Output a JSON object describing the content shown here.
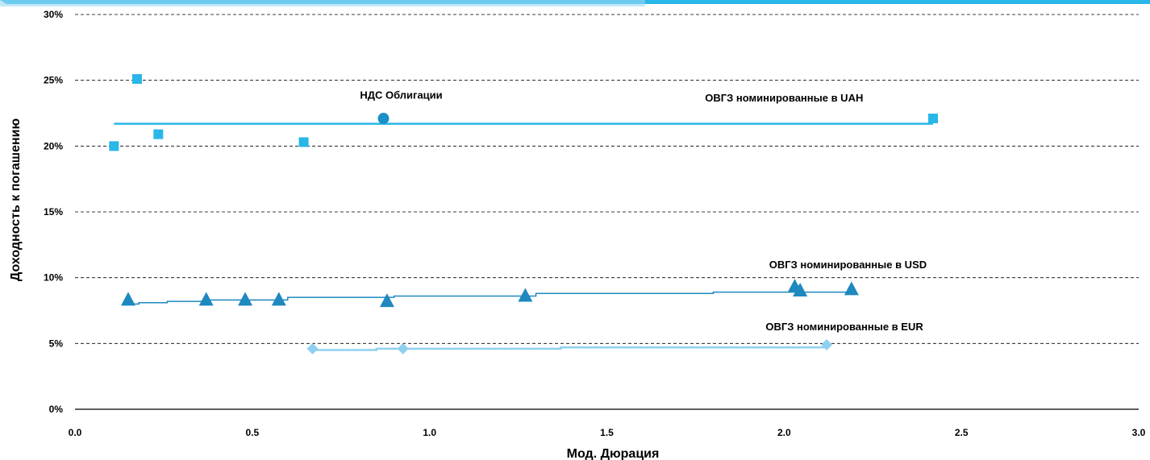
{
  "chart_data": {
    "type": "scatter",
    "xlabel": "Мод. Дюрация",
    "ylabel": "Доходность к погашению",
    "xlim": [
      0.0,
      3.0
    ],
    "ylim": [
      0,
      30
    ],
    "x_ticks": [
      "0.0",
      "0.5",
      "1.0",
      "1.5",
      "2.0",
      "2.5",
      "3.0"
    ],
    "y_ticks": [
      "0%",
      "5%",
      "10%",
      "15%",
      "20%",
      "25%",
      "30%"
    ],
    "grid": "horizontal dashed",
    "series": [
      {
        "marker": "square",
        "color": "#29b6e8",
        "points": [
          [
            0.11,
            20.0
          ],
          [
            0.175,
            25.1
          ],
          [
            0.235,
            20.9
          ],
          [
            0.645,
            20.3
          ],
          [
            2.42,
            22.1
          ]
        ],
        "trendline": [
          [
            0.11,
            21.7
          ],
          [
            2.42,
            21.7
          ]
        ]
      },
      {
        "marker": "circle",
        "color": "#1a8fc8",
        "points": [
          [
            0.87,
            22.1
          ]
        ]
      },
      {
        "marker": "triangle",
        "color": "#1e88bf",
        "points": [
          [
            0.15,
            8.3
          ],
          [
            0.37,
            8.3
          ],
          [
            0.48,
            8.3
          ],
          [
            0.575,
            8.3
          ],
          [
            0.88,
            8.2
          ],
          [
            1.27,
            8.6
          ],
          [
            2.03,
            9.3
          ],
          [
            2.045,
            9.0
          ],
          [
            2.19,
            9.1
          ]
        ],
        "trendline": [
          [
            0.15,
            8.0
          ],
          [
            0.18,
            8.1
          ],
          [
            0.26,
            8.2
          ],
          [
            0.37,
            8.3
          ],
          [
            0.6,
            8.5
          ],
          [
            0.9,
            8.6
          ],
          [
            1.3,
            8.8
          ],
          [
            1.8,
            8.9
          ],
          [
            2.19,
            9.0
          ]
        ]
      },
      {
        "marker": "diamond",
        "color": "#8fd0ef",
        "points": [
          [
            0.67,
            4.6
          ],
          [
            0.925,
            4.6
          ],
          [
            2.12,
            4.9
          ]
        ],
        "trendline": [
          [
            0.67,
            4.5
          ],
          [
            0.85,
            4.6
          ],
          [
            1.37,
            4.7
          ],
          [
            2.12,
            4.8
          ]
        ]
      }
    ],
    "annotations": {
      "nds": {
        "text": "НДС  Облигации",
        "x": 0.92,
        "y": 23.6
      },
      "uah": {
        "text": "ОВГЗ номинированные в UAH",
        "x": 2.0,
        "y": 23.4
      },
      "usd": {
        "text": "ОВГЗ номинированные в USD",
        "x": 2.18,
        "y": 10.7
      },
      "eur": {
        "text": "ОВГЗ номинированные в EUR",
        "x": 2.17,
        "y": 6.0
      }
    }
  }
}
